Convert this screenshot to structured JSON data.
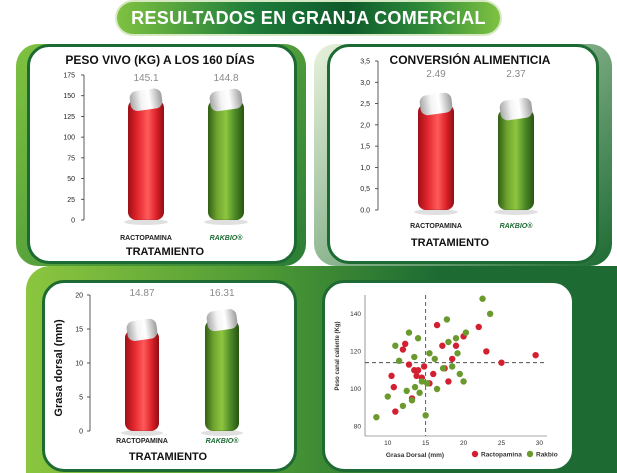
{
  "page_title": "RESULTADOS EN GRANJA COMERCIAL",
  "colors": {
    "dark_green": "#1d6b33",
    "bright_green": "#7fc241",
    "red": "#e3242b",
    "gray_cap": "#dcdcdc",
    "text_gray": "#8a8a8a"
  },
  "chart_data": [
    {
      "type": "bar",
      "title": "PESO VIVO (KG) A LOS 160 DÍAS",
      "xlabel": "TRATAMIENTO",
      "ylabel": "",
      "categories": [
        "RACTOPAMINA",
        "RAKBIO®"
      ],
      "values": [
        145.1,
        144.8
      ],
      "value_labels": [
        "145.1",
        "144.8"
      ],
      "ylim": [
        0,
        175
      ],
      "yticks": [
        0,
        25,
        50,
        75,
        100,
        125,
        150,
        175
      ],
      "ytick_labels": [
        "0",
        "25",
        "50",
        "75",
        "100",
        "125",
        "150",
        "175"
      ]
    },
    {
      "type": "bar",
      "title": "CONVERSIÓN ALIMENTICIA",
      "xlabel": "TRATAMIENTO",
      "ylabel": "",
      "categories": [
        "RACTOPAMINA",
        "RAKBIO®"
      ],
      "values": [
        2.49,
        2.37
      ],
      "value_labels": [
        "2.49",
        "2.37"
      ],
      "ylim": [
        0,
        3.5
      ],
      "yticks": [
        0,
        0.5,
        1,
        1.5,
        2,
        2.5,
        3,
        3.5
      ],
      "ytick_labels": [
        "0.0",
        "0,5",
        "1,0",
        "1,5",
        "2,0",
        "2,5",
        "3,0",
        "3,5"
      ]
    },
    {
      "type": "bar",
      "title": "",
      "xlabel": "TRATAMIENTO",
      "ylabel": "Grasa dorsal (mm)",
      "categories": [
        "RACTOPAMINA",
        "RAKBIO®"
      ],
      "values": [
        14.87,
        16.31
      ],
      "value_labels": [
        "14.87",
        "16.31"
      ],
      "ylim": [
        0,
        20
      ],
      "yticks": [
        0,
        5,
        10,
        15,
        20
      ],
      "ytick_labels": [
        "0",
        "5",
        "10",
        "15",
        "20"
      ]
    },
    {
      "type": "scatter",
      "title": "",
      "xlabel": "Grasa Dorsal (mm)",
      "ylabel": "Peso canal caliente (Kg)",
      "xlim": [
        7,
        31
      ],
      "ylim": [
        75,
        150
      ],
      "xticks": [
        10,
        15,
        20,
        25,
        30
      ],
      "yticks": [
        80,
        100,
        120,
        140
      ],
      "reference_lines": {
        "x": 15,
        "y": 114
      },
      "series": [
        {
          "name": "Ractopamina",
          "color": "#d32030",
          "points": [
            [
              10.5,
              107
            ],
            [
              10.8,
              101
            ],
            [
              11,
              88
            ],
            [
              12,
              121
            ],
            [
              12.3,
              124
            ],
            [
              12.8,
              113
            ],
            [
              13.2,
              95
            ],
            [
              13.5,
              110
            ],
            [
              13.8,
              107
            ],
            [
              14,
              110
            ],
            [
              14.5,
              106
            ],
            [
              14.8,
              112
            ],
            [
              15.5,
              103
            ],
            [
              16,
              108
            ],
            [
              16.5,
              134
            ],
            [
              17.2,
              123
            ],
            [
              17.5,
              111
            ],
            [
              18,
              104
            ],
            [
              18.5,
              116
            ],
            [
              19,
              123
            ],
            [
              20,
              128
            ],
            [
              22,
              133
            ],
            [
              23,
              120
            ],
            [
              25,
              114
            ],
            [
              29.5,
              118
            ]
          ]
        },
        {
          "name": "Rakbio",
          "color": "#6a9a2e",
          "points": [
            [
              8.5,
              85
            ],
            [
              10,
              96
            ],
            [
              11,
              123
            ],
            [
              11.5,
              115
            ],
            [
              12,
              91
            ],
            [
              12.5,
              99
            ],
            [
              12.8,
              130
            ],
            [
              13.2,
              94
            ],
            [
              13.5,
              117
            ],
            [
              13.6,
              101
            ],
            [
              14,
              127
            ],
            [
              14.2,
              98
            ],
            [
              14.5,
              104
            ],
            [
              15,
              86
            ],
            [
              15.2,
              103
            ],
            [
              15.5,
              119
            ],
            [
              16.2,
              116
            ],
            [
              16.5,
              100
            ],
            [
              17.3,
              111
            ],
            [
              17.8,
              137
            ],
            [
              18,
              125
            ],
            [
              18.5,
              112
            ],
            [
              19,
              127
            ],
            [
              19.2,
              119
            ],
            [
              19.5,
              108
            ],
            [
              20,
              104
            ],
            [
              20.3,
              130
            ],
            [
              22.5,
              148
            ],
            [
              23.5,
              140
            ]
          ]
        }
      ]
    }
  ]
}
